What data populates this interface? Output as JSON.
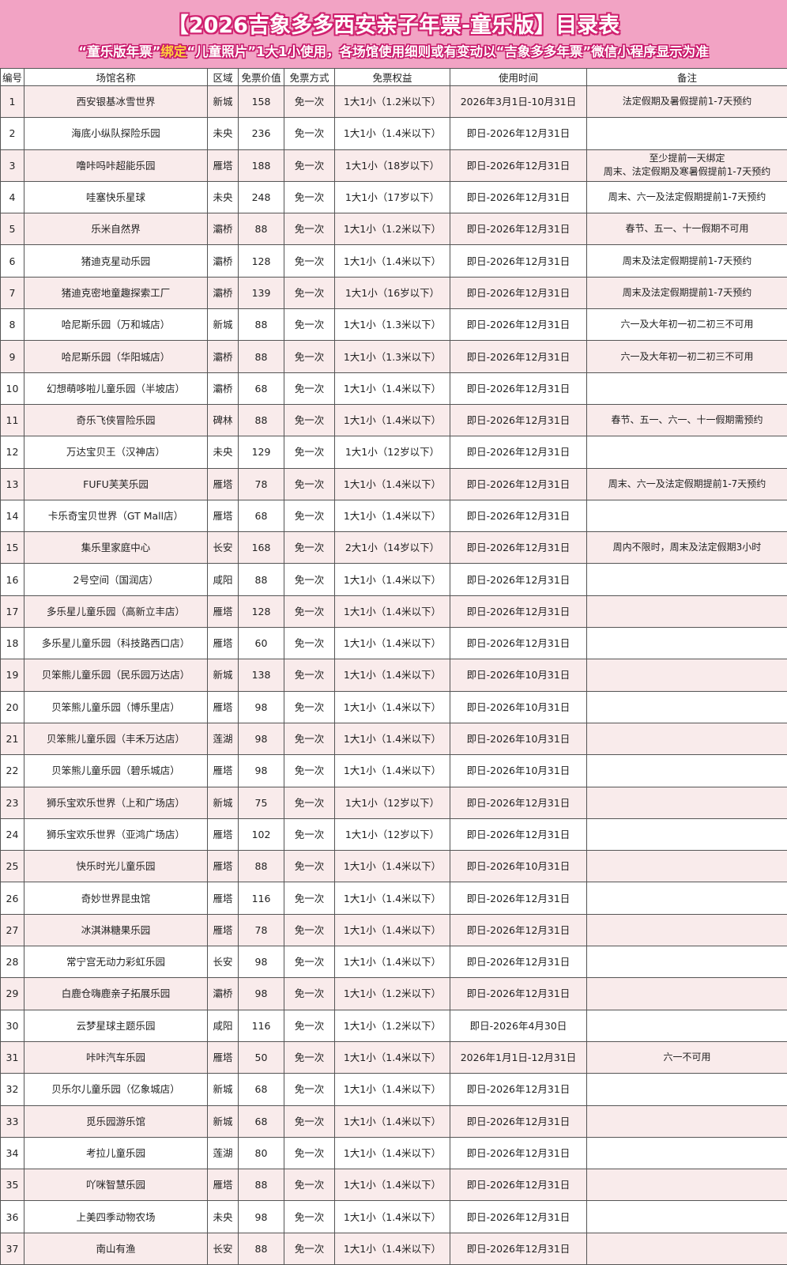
{
  "header": {
    "title": "【2026吉象多多西安亲子年票-童乐版】目录表",
    "subtitle_parts": [
      "“童乐版年票”",
      "绑定",
      "“儿童照片”",
      "1大1小使用，各场馆使用细则或有变动以“吉象多多年票”微信小程序显示为准"
    ]
  },
  "colors": {
    "banner": "#f2a3c4",
    "title_outline": "#d0216f",
    "highlight": "#ffd23c",
    "row_alt": "#f9ebeb"
  },
  "table": {
    "columns": [
      "编号",
      "场馆名称",
      "区域",
      "免票价值",
      "免票方式",
      "免票权益",
      "使用时间",
      "备注"
    ],
    "rows": [
      [
        "1",
        "西安银基冰雪世界",
        "新城",
        "158",
        "免一次",
        "1大1小（1.2米以下）",
        "2026年3月1日-10月31日",
        "法定假期及暑假提前1-7天预约"
      ],
      [
        "2",
        "海底小纵队探险乐园",
        "未央",
        "236",
        "免一次",
        "1大1小（1.4米以下）",
        "即日-2026年12月31日",
        ""
      ],
      [
        "3",
        "噜咔吗咔超能乐园",
        "雁塔",
        "188",
        "免一次",
        "1大1小（18岁以下）",
        "即日-2026年12月31日",
        "至少提前一天绑定\n周末、法定假期及寒暑假提前1-7天预约"
      ],
      [
        "4",
        "哇塞快乐星球",
        "未央",
        "248",
        "免一次",
        "1大1小（17岁以下）",
        "即日-2026年12月31日",
        "周末、六一及法定假期提前1-7天预约"
      ],
      [
        "5",
        "乐米自然界",
        "灞桥",
        "88",
        "免一次",
        "1大1小（1.2米以下）",
        "即日-2026年12月31日",
        "春节、五一、十一假期不可用"
      ],
      [
        "6",
        "猪迪克星动乐园",
        "灞桥",
        "128",
        "免一次",
        "1大1小（1.4米以下）",
        "即日-2026年12月31日",
        "周末及法定假期提前1-7天预约"
      ],
      [
        "7",
        "猪迪克密地童趣探索工厂",
        "灞桥",
        "139",
        "免一次",
        "1大1小（16岁以下）",
        "即日-2026年12月31日",
        "周末及法定假期提前1-7天预约"
      ],
      [
        "8",
        "哈尼斯乐园（万和城店）",
        "新城",
        "88",
        "免一次",
        "1大1小（1.3米以下）",
        "即日-2026年12月31日",
        "六一及大年初一初二初三不可用"
      ],
      [
        "9",
        "哈尼斯乐园（华阳城店）",
        "灞桥",
        "88",
        "免一次",
        "1大1小（1.3米以下）",
        "即日-2026年12月31日",
        "六一及大年初一初二初三不可用"
      ],
      [
        "10",
        "幻想萌哆啦儿童乐园（半坡店）",
        "灞桥",
        "68",
        "免一次",
        "1大1小（1.4米以下）",
        "即日-2026年12月31日",
        ""
      ],
      [
        "11",
        "奇乐飞侠冒险乐园",
        "碑林",
        "88",
        "免一次",
        "1大1小（1.4米以下）",
        "即日-2026年12月31日",
        "春节、五一、六一、十一假期需预约"
      ],
      [
        "12",
        "万达宝贝王（汉神店）",
        "未央",
        "129",
        "免一次",
        "1大1小（12岁以下）",
        "即日-2026年12月31日",
        ""
      ],
      [
        "13",
        "FUFU芙芙乐园",
        "雁塔",
        "78",
        "免一次",
        "1大1小（1.4米以下）",
        "即日-2026年12月31日",
        "周末、六一及法定假期提前1-7天预约"
      ],
      [
        "14",
        "卡乐奇宝贝世界（GT Mall店）",
        "雁塔",
        "68",
        "免一次",
        "1大1小（1.4米以下）",
        "即日-2026年12月31日",
        ""
      ],
      [
        "15",
        "集乐里家庭中心",
        "长安",
        "168",
        "免一次",
        "2大1小（14岁以下）",
        "即日-2026年12月31日",
        "周内不限时，周末及法定假期3小时"
      ],
      [
        "16",
        "2号空间（国润店）",
        "咸阳",
        "88",
        "免一次",
        "1大1小（1.4米以下）",
        "即日-2026年12月31日",
        ""
      ],
      [
        "17",
        "多乐星儿童乐园（高新立丰店）",
        "雁塔",
        "128",
        "免一次",
        "1大1小（1.4米以下）",
        "即日-2026年12月31日",
        ""
      ],
      [
        "18",
        "多乐星儿童乐园（科技路西口店）",
        "雁塔",
        "60",
        "免一次",
        "1大1小（1.4米以下）",
        "即日-2026年12月31日",
        ""
      ],
      [
        "19",
        "贝笨熊儿童乐园（民乐园万达店）",
        "新城",
        "138",
        "免一次",
        "1大1小（1.4米以下）",
        "即日-2026年10月31日",
        ""
      ],
      [
        "20",
        "贝笨熊儿童乐园（博乐里店）",
        "雁塔",
        "98",
        "免一次",
        "1大1小（1.4米以下）",
        "即日-2026年10月31日",
        ""
      ],
      [
        "21",
        "贝笨熊儿童乐园（丰禾万达店）",
        "莲湖",
        "98",
        "免一次",
        "1大1小（1.4米以下）",
        "即日-2026年10月31日",
        ""
      ],
      [
        "22",
        "贝笨熊儿童乐园（碧乐城店）",
        "雁塔",
        "98",
        "免一次",
        "1大1小（1.4米以下）",
        "即日-2026年10月31日",
        ""
      ],
      [
        "23",
        "狮乐宝欢乐世界（上和广场店）",
        "新城",
        "75",
        "免一次",
        "1大1小（12岁以下）",
        "即日-2026年12月31日",
        ""
      ],
      [
        "24",
        "狮乐宝欢乐世界（亚鸿广场店）",
        "雁塔",
        "102",
        "免一次",
        "1大1小（12岁以下）",
        "即日-2026年12月31日",
        ""
      ],
      [
        "25",
        "快乐时光儿童乐园",
        "雁塔",
        "88",
        "免一次",
        "1大1小（1.4米以下）",
        "即日-2026年10月31日",
        ""
      ],
      [
        "26",
        "奇妙世界昆虫馆",
        "雁塔",
        "116",
        "免一次",
        "1大1小（1.4米以下）",
        "即日-2026年12月31日",
        ""
      ],
      [
        "27",
        "冰淇淋糖果乐园",
        "雁塔",
        "78",
        "免一次",
        "1大1小（1.4米以下）",
        "即日-2026年12月31日",
        ""
      ],
      [
        "28",
        "常宁宫无动力彩虹乐园",
        "长安",
        "98",
        "免一次",
        "1大1小（1.4米以下）",
        "即日-2026年12月31日",
        ""
      ],
      [
        "29",
        "白鹿仓嗨鹿亲子拓展乐园",
        "灞桥",
        "98",
        "免一次",
        "1大1小（1.2米以下）",
        "即日-2026年12月31日",
        ""
      ],
      [
        "30",
        "云梦星球主题乐园",
        "咸阳",
        "116",
        "免一次",
        "1大1小（1.2米以下）",
        "即日-2026年4月30日",
        ""
      ],
      [
        "31",
        "咔咔汽车乐园",
        "雁塔",
        "50",
        "免一次",
        "1大1小（1.4米以下）",
        "2026年1月1日-12月31日",
        "六一不可用"
      ],
      [
        "32",
        "贝乐尔儿童乐园（亿象城店）",
        "新城",
        "68",
        "免一次",
        "1大1小（1.4米以下）",
        "即日-2026年12月31日",
        ""
      ],
      [
        "33",
        "觅乐园游乐馆",
        "新城",
        "68",
        "免一次",
        "1大1小（1.4米以下）",
        "即日-2026年12月31日",
        ""
      ],
      [
        "34",
        "考拉儿童乐园",
        "莲湖",
        "80",
        "免一次",
        "1大1小（1.4米以下）",
        "即日-2026年12月31日",
        ""
      ],
      [
        "35",
        "吖咪智慧乐园",
        "雁塔",
        "88",
        "免一次",
        "1大1小（1.4米以下）",
        "即日-2026年12月31日",
        ""
      ],
      [
        "36",
        "上美四季动物农场",
        "未央",
        "98",
        "免一次",
        "1大1小（1.4米以下）",
        "即日-2026年12月31日",
        ""
      ],
      [
        "37",
        "南山有渔",
        "长安",
        "88",
        "免一次",
        "1大1小（1.4米以下）",
        "即日-2026年12月31日",
        ""
      ]
    ]
  }
}
